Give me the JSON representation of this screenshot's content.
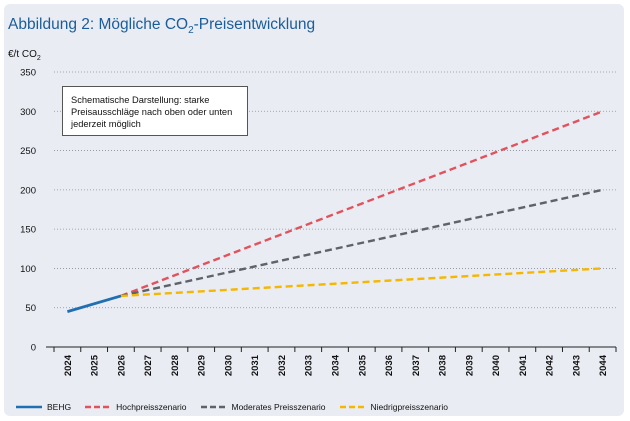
{
  "chart_data": {
    "type": "line",
    "title_prefix": "Abbildung 2: Mögliche CO",
    "title_sub": "2",
    "title_suffix": "-Preisentwicklung",
    "ylabel_prefix": "€/t CO",
    "ylabel_sub": "2",
    "xlabel": "",
    "ylim": [
      0,
      350
    ],
    "yticks": [
      0,
      50,
      100,
      150,
      200,
      250,
      300,
      350
    ],
    "x": [
      "2024",
      "2025",
      "2026",
      "2027",
      "2028",
      "2029",
      "2030",
      "2031",
      "2032",
      "2033",
      "2034",
      "2035",
      "2036",
      "2037",
      "2038",
      "2039",
      "2040",
      "2041",
      "2042",
      "2043",
      "2044"
    ],
    "grid": "horizontal dotted",
    "legend_position": "bottom",
    "annotation": "Schematische Darstellung: starke Preisausschläge nach oben oder unten jederzeit möglich",
    "series": [
      {
        "name": "BEHG",
        "style": "solid",
        "color": "#1f6fb2",
        "points": [
          [
            "2024",
            45
          ],
          [
            "2026",
            65
          ]
        ]
      },
      {
        "name": "Hochpreisszenario",
        "style": "dashed",
        "color": "#e2525c",
        "points": [
          [
            "2026",
            65
          ],
          [
            "2044",
            300
          ]
        ]
      },
      {
        "name": "Moderates Preisszenario",
        "style": "dashed",
        "color": "#5f6368",
        "points": [
          [
            "2026",
            65
          ],
          [
            "2044",
            200
          ]
        ]
      },
      {
        "name": "Niedrigpreisszenario",
        "style": "dashed",
        "color": "#f5b700",
        "points": [
          [
            "2026",
            65
          ],
          [
            "2044",
            100
          ]
        ]
      }
    ]
  }
}
